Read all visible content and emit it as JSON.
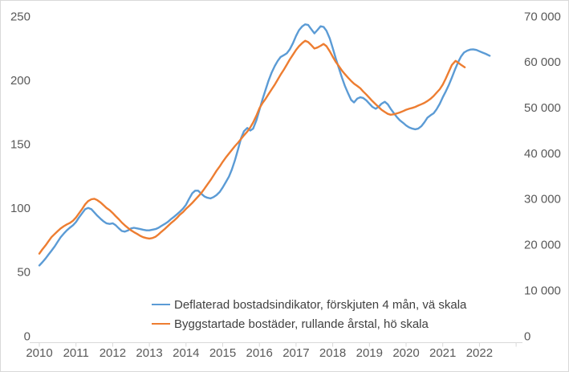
{
  "chart_data": {
    "type": "line",
    "title": "",
    "legend_position": "bottom-center",
    "grid": false,
    "x_axis": {
      "tick_labels": [
        "2010",
        "2011",
        "2012",
        "2013",
        "2014",
        "2015",
        "2016",
        "2017",
        "2018",
        "2019",
        "2020",
        "2021",
        "2022"
      ],
      "range": [
        2010,
        2023
      ]
    },
    "left_axis": {
      "tick_values": [
        0,
        50,
        100,
        150,
        200,
        250
      ],
      "tick_labels": [
        "0",
        "50",
        "100",
        "150",
        "200",
        "250"
      ],
      "range": [
        0,
        250
      ]
    },
    "right_axis": {
      "tick_values": [
        0,
        10000,
        20000,
        30000,
        40000,
        50000,
        60000,
        70000
      ],
      "tick_labels": [
        "0",
        "10 000",
        "20 000",
        "30 000",
        "40 000",
        "50 000",
        "60 000",
        "70 000"
      ],
      "range": [
        0,
        70000
      ]
    },
    "colors": {
      "axis_line": "#d9d9d9",
      "tick_text": "#595959",
      "legend_text": "#404040"
    },
    "series": [
      {
        "name": "Deflaterad bostadsindikator, förskjuten 4 mån, vä skala",
        "color": "#5B9BD5",
        "axis": "left",
        "points": [
          [
            2010.0,
            55
          ],
          [
            2010.08,
            57.5
          ],
          [
            2010.17,
            60.5
          ],
          [
            2010.25,
            63.5
          ],
          [
            2010.33,
            66.5
          ],
          [
            2010.42,
            70
          ],
          [
            2010.5,
            73.5
          ],
          [
            2010.58,
            77
          ],
          [
            2010.67,
            80
          ],
          [
            2010.75,
            82.5
          ],
          [
            2010.83,
            84.5
          ],
          [
            2010.92,
            86.5
          ],
          [
            2011.0,
            89
          ],
          [
            2011.08,
            92.5
          ],
          [
            2011.17,
            96
          ],
          [
            2011.25,
            99
          ],
          [
            2011.33,
            100
          ],
          [
            2011.42,
            99
          ],
          [
            2011.5,
            96.5
          ],
          [
            2011.58,
            94
          ],
          [
            2011.67,
            91.5
          ],
          [
            2011.75,
            89.5
          ],
          [
            2011.83,
            88
          ],
          [
            2011.92,
            87.5
          ],
          [
            2012.0,
            88
          ],
          [
            2012.08,
            86.5
          ],
          [
            2012.17,
            84
          ],
          [
            2012.25,
            82
          ],
          [
            2012.33,
            81.5
          ],
          [
            2012.42,
            82.5
          ],
          [
            2012.5,
            84
          ],
          [
            2012.58,
            84.5
          ],
          [
            2012.67,
            84
          ],
          [
            2012.75,
            83.5
          ],
          [
            2012.83,
            83
          ],
          [
            2012.92,
            82.5
          ],
          [
            2013.0,
            82.5
          ],
          [
            2013.08,
            83
          ],
          [
            2013.17,
            83.5
          ],
          [
            2013.25,
            84.5
          ],
          [
            2013.33,
            86
          ],
          [
            2013.42,
            87.5
          ],
          [
            2013.5,
            89
          ],
          [
            2013.58,
            91
          ],
          [
            2013.67,
            93
          ],
          [
            2013.75,
            95
          ],
          [
            2013.83,
            97
          ],
          [
            2013.92,
            99.5
          ],
          [
            2014.0,
            102.5
          ],
          [
            2014.08,
            107
          ],
          [
            2014.17,
            111.5
          ],
          [
            2014.25,
            113.5
          ],
          [
            2014.33,
            113.5
          ],
          [
            2014.42,
            111
          ],
          [
            2014.5,
            109
          ],
          [
            2014.58,
            108
          ],
          [
            2014.67,
            107.5
          ],
          [
            2014.75,
            108.5
          ],
          [
            2014.83,
            110
          ],
          [
            2014.92,
            112.5
          ],
          [
            2015.0,
            116
          ],
          [
            2015.08,
            120
          ],
          [
            2015.17,
            124.5
          ],
          [
            2015.25,
            130
          ],
          [
            2015.33,
            137
          ],
          [
            2015.42,
            146
          ],
          [
            2015.5,
            154.5
          ],
          [
            2015.58,
            160
          ],
          [
            2015.67,
            162.5
          ],
          [
            2015.75,
            160.5
          ],
          [
            2015.83,
            162
          ],
          [
            2015.92,
            168.5
          ],
          [
            2016.0,
            176.5
          ],
          [
            2016.08,
            184.5
          ],
          [
            2016.17,
            192.5
          ],
          [
            2016.25,
            199.5
          ],
          [
            2016.33,
            205.5
          ],
          [
            2016.42,
            211
          ],
          [
            2016.5,
            215
          ],
          [
            2016.58,
            218
          ],
          [
            2016.67,
            219.5
          ],
          [
            2016.75,
            221
          ],
          [
            2016.83,
            224
          ],
          [
            2016.92,
            229
          ],
          [
            2017.0,
            234.5
          ],
          [
            2017.08,
            239
          ],
          [
            2017.17,
            242
          ],
          [
            2017.25,
            243.5
          ],
          [
            2017.33,
            243
          ],
          [
            2017.42,
            239.5
          ],
          [
            2017.5,
            236.5
          ],
          [
            2017.58,
            239
          ],
          [
            2017.67,
            242
          ],
          [
            2017.75,
            241.5
          ],
          [
            2017.83,
            238.5
          ],
          [
            2017.92,
            232.5
          ],
          [
            2018.0,
            225
          ],
          [
            2018.08,
            217
          ],
          [
            2018.17,
            209
          ],
          [
            2018.25,
            202
          ],
          [
            2018.33,
            195.5
          ],
          [
            2018.42,
            189.5
          ],
          [
            2018.5,
            184.5
          ],
          [
            2018.58,
            182.5
          ],
          [
            2018.67,
            185.5
          ],
          [
            2018.75,
            186.5
          ],
          [
            2018.83,
            186
          ],
          [
            2018.92,
            184
          ],
          [
            2019.0,
            181.5
          ],
          [
            2019.08,
            179
          ],
          [
            2019.17,
            177.5
          ],
          [
            2019.25,
            179
          ],
          [
            2019.33,
            181.5
          ],
          [
            2019.42,
            183
          ],
          [
            2019.5,
            181
          ],
          [
            2019.58,
            177.5
          ],
          [
            2019.67,
            174
          ],
          [
            2019.75,
            171
          ],
          [
            2019.83,
            168.5
          ],
          [
            2019.92,
            166.5
          ],
          [
            2020.0,
            164.5
          ],
          [
            2020.08,
            163
          ],
          [
            2020.17,
            162
          ],
          [
            2020.25,
            161.5
          ],
          [
            2020.33,
            162
          ],
          [
            2020.42,
            164
          ],
          [
            2020.5,
            167
          ],
          [
            2020.58,
            170.5
          ],
          [
            2020.67,
            172.5
          ],
          [
            2020.75,
            174
          ],
          [
            2020.83,
            177
          ],
          [
            2020.92,
            181.5
          ],
          [
            2021.0,
            186.5
          ],
          [
            2021.08,
            191
          ],
          [
            2021.17,
            196.5
          ],
          [
            2021.25,
            202
          ],
          [
            2021.33,
            208
          ],
          [
            2021.42,
            214
          ],
          [
            2021.5,
            218.5
          ],
          [
            2021.58,
            221.5
          ],
          [
            2021.67,
            223
          ],
          [
            2021.75,
            223.8
          ],
          [
            2021.83,
            224
          ],
          [
            2021.92,
            223.5
          ],
          [
            2022.0,
            222.5
          ],
          [
            2022.08,
            221.5
          ],
          [
            2022.17,
            220.5
          ],
          [
            2022.28,
            219
          ]
        ]
      },
      {
        "name": "Byggstartade bostäder, rullande årstal, hö skala",
        "color": "#ED7D31",
        "axis": "right",
        "points": [
          [
            2010.0,
            18000
          ],
          [
            2010.08,
            18900
          ],
          [
            2010.17,
            19800
          ],
          [
            2010.25,
            20700
          ],
          [
            2010.33,
            21600
          ],
          [
            2010.42,
            22300
          ],
          [
            2010.5,
            22900
          ],
          [
            2010.58,
            23500
          ],
          [
            2010.67,
            24000
          ],
          [
            2010.75,
            24400
          ],
          [
            2010.83,
            24700
          ],
          [
            2010.92,
            25200
          ],
          [
            2011.0,
            25900
          ],
          [
            2011.08,
            26800
          ],
          [
            2011.17,
            27800
          ],
          [
            2011.25,
            28800
          ],
          [
            2011.33,
            29500
          ],
          [
            2011.42,
            29900
          ],
          [
            2011.5,
            30000
          ],
          [
            2011.58,
            29700
          ],
          [
            2011.67,
            29200
          ],
          [
            2011.75,
            28600
          ],
          [
            2011.83,
            28000
          ],
          [
            2011.92,
            27500
          ],
          [
            2012.0,
            26900
          ],
          [
            2012.08,
            26200
          ],
          [
            2012.17,
            25500
          ],
          [
            2012.25,
            24800
          ],
          [
            2012.33,
            24200
          ],
          [
            2012.42,
            23600
          ],
          [
            2012.5,
            23100
          ],
          [
            2012.58,
            22700
          ],
          [
            2012.67,
            22300
          ],
          [
            2012.75,
            21900
          ],
          [
            2012.83,
            21600
          ],
          [
            2012.92,
            21400
          ],
          [
            2013.0,
            21300
          ],
          [
            2013.08,
            21400
          ],
          [
            2013.17,
            21700
          ],
          [
            2013.25,
            22200
          ],
          [
            2013.33,
            22800
          ],
          [
            2013.42,
            23400
          ],
          [
            2013.5,
            24000
          ],
          [
            2013.58,
            24600
          ],
          [
            2013.67,
            25200
          ],
          [
            2013.75,
            25800
          ],
          [
            2013.83,
            26500
          ],
          [
            2013.92,
            27100
          ],
          [
            2014.0,
            27800
          ],
          [
            2014.08,
            28400
          ],
          [
            2014.17,
            29100
          ],
          [
            2014.25,
            29800
          ],
          [
            2014.33,
            30500
          ],
          [
            2014.42,
            31300
          ],
          [
            2014.5,
            32200
          ],
          [
            2014.58,
            33100
          ],
          [
            2014.67,
            34100
          ],
          [
            2014.75,
            35100
          ],
          [
            2014.83,
            36100
          ],
          [
            2014.92,
            37100
          ],
          [
            2015.0,
            38100
          ],
          [
            2015.08,
            39000
          ],
          [
            2015.17,
            39900
          ],
          [
            2015.25,
            40700
          ],
          [
            2015.33,
            41500
          ],
          [
            2015.42,
            42300
          ],
          [
            2015.5,
            43100
          ],
          [
            2015.58,
            43900
          ],
          [
            2015.67,
            44700
          ],
          [
            2015.75,
            45600
          ],
          [
            2015.83,
            46700
          ],
          [
            2015.92,
            48200
          ],
          [
            2016.0,
            49800
          ],
          [
            2016.08,
            50900
          ],
          [
            2016.17,
            51900
          ],
          [
            2016.25,
            52900
          ],
          [
            2016.33,
            53900
          ],
          [
            2016.42,
            55000
          ],
          [
            2016.5,
            56100
          ],
          [
            2016.58,
            57200
          ],
          [
            2016.67,
            58300
          ],
          [
            2016.75,
            59400
          ],
          [
            2016.83,
            60500
          ],
          [
            2016.92,
            61600
          ],
          [
            2017.0,
            62600
          ],
          [
            2017.08,
            63400
          ],
          [
            2017.17,
            64100
          ],
          [
            2017.25,
            64600
          ],
          [
            2017.33,
            64300
          ],
          [
            2017.42,
            63600
          ],
          [
            2017.5,
            62900
          ],
          [
            2017.58,
            63100
          ],
          [
            2017.67,
            63500
          ],
          [
            2017.75,
            63900
          ],
          [
            2017.83,
            63400
          ],
          [
            2017.92,
            62300
          ],
          [
            2018.0,
            61100
          ],
          [
            2018.08,
            60000
          ],
          [
            2018.17,
            59000
          ],
          [
            2018.25,
            58100
          ],
          [
            2018.33,
            57300
          ],
          [
            2018.42,
            56500
          ],
          [
            2018.5,
            55800
          ],
          [
            2018.58,
            55200
          ],
          [
            2018.67,
            54700
          ],
          [
            2018.75,
            54200
          ],
          [
            2018.83,
            53500
          ],
          [
            2018.92,
            52800
          ],
          [
            2019.0,
            52100
          ],
          [
            2019.08,
            51400
          ],
          [
            2019.17,
            50700
          ],
          [
            2019.25,
            50100
          ],
          [
            2019.33,
            49500
          ],
          [
            2019.42,
            49000
          ],
          [
            2019.5,
            48600
          ],
          [
            2019.58,
            48400
          ],
          [
            2019.67,
            48500
          ],
          [
            2019.75,
            48700
          ],
          [
            2019.83,
            48900
          ],
          [
            2019.92,
            49200
          ],
          [
            2020.0,
            49500
          ],
          [
            2020.08,
            49700
          ],
          [
            2020.17,
            49900
          ],
          [
            2020.25,
            50100
          ],
          [
            2020.33,
            50400
          ],
          [
            2020.42,
            50700
          ],
          [
            2020.5,
            51000
          ],
          [
            2020.58,
            51400
          ],
          [
            2020.67,
            51900
          ],
          [
            2020.75,
            52500
          ],
          [
            2020.83,
            53200
          ],
          [
            2020.92,
            54000
          ],
          [
            2021.0,
            55000
          ],
          [
            2021.08,
            56300
          ],
          [
            2021.17,
            57900
          ],
          [
            2021.25,
            59300
          ],
          [
            2021.35,
            60200
          ],
          [
            2021.42,
            59800
          ],
          [
            2021.5,
            59300
          ],
          [
            2021.6,
            58800
          ]
        ]
      }
    ]
  }
}
